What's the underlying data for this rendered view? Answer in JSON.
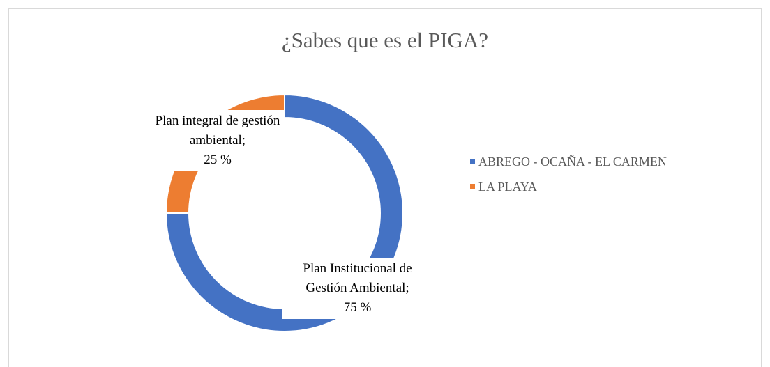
{
  "chart_data": {
    "type": "donut",
    "title": "¿Sabes que es el PIGA?",
    "categories": [
      "ABREGO - OCAÑA - EL CARMEN",
      "LA PLAYA"
    ],
    "values": [
      75,
      25
    ],
    "value_labels": [
      "75 %",
      "25 %"
    ],
    "label_names": [
      "Plan Institucional de Gestión Ambiental;",
      "Plan integral de gestión ambiental;"
    ],
    "colors": [
      "#4472c4",
      "#ed7d31"
    ],
    "legend": "right"
  }
}
